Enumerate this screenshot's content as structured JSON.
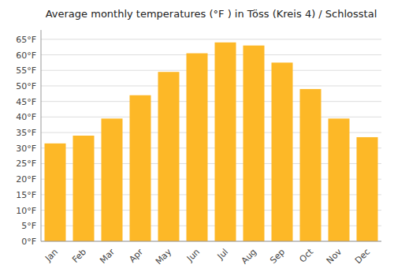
{
  "chart_data": {
    "type": "bar",
    "title": "Average monthly temperatures (°F ) in Töss (Kreis 4) / Schlosstal",
    "categories": [
      "Jan",
      "Feb",
      "Mar",
      "Apr",
      "May",
      "Jun",
      "Jul",
      "Aug",
      "Sep",
      "Oct",
      "Nov",
      "Dec"
    ],
    "values": [
      31.5,
      34.0,
      39.5,
      47.0,
      54.5,
      60.5,
      64.0,
      63.0,
      57.5,
      49.0,
      39.5,
      33.5
    ],
    "color": "#FDB827",
    "ylim": [
      0,
      68
    ],
    "yticks": [
      {
        "value": 0,
        "label": "0°F"
      },
      {
        "value": 5,
        "label": "5°F"
      },
      {
        "value": 10,
        "label": "10°F"
      },
      {
        "value": 15,
        "label": "15°F"
      },
      {
        "value": 20,
        "label": "20°F"
      },
      {
        "value": 25,
        "label": "25°F"
      },
      {
        "value": 30,
        "label": "30°F"
      },
      {
        "value": 35,
        "label": "35°F"
      },
      {
        "value": 40,
        "label": "40°F"
      },
      {
        "value": 45,
        "label": "45°F"
      },
      {
        "value": 50,
        "label": "50°F"
      },
      {
        "value": 55,
        "label": "55°F"
      },
      {
        "value": 60,
        "label": "60°F"
      },
      {
        "value": 65,
        "label": "65°F"
      }
    ],
    "grid": true
  }
}
